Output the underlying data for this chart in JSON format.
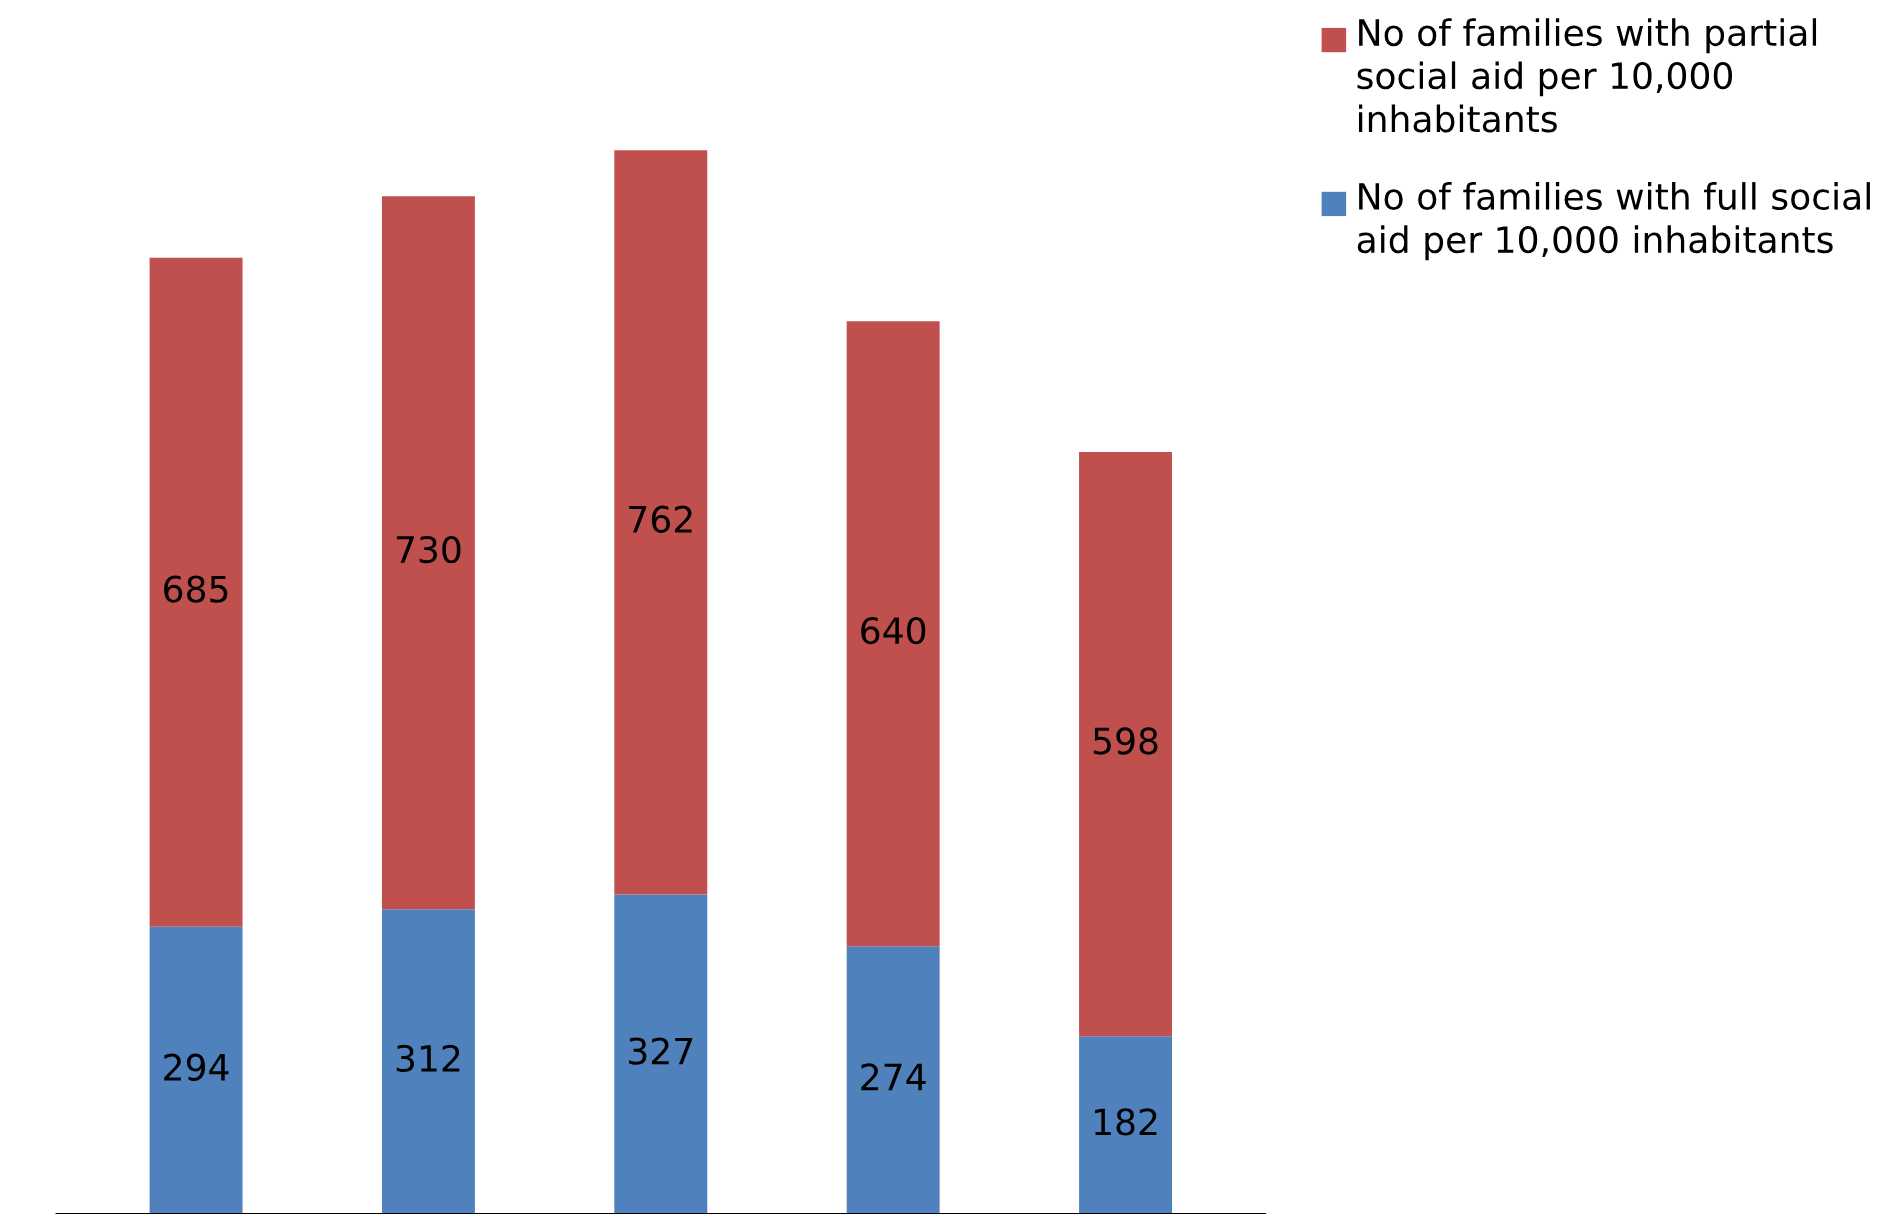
{
  "chart_data": {
    "type": "bar",
    "stacked": true,
    "categories": [
      null,
      null,
      null,
      null,
      null
    ],
    "series": [
      {
        "name": "No of families with full social aid per 10,000 inhabitants",
        "color": "#4f81bd",
        "values": [
          294,
          312,
          327,
          274,
          182
        ]
      },
      {
        "name": "No of families with partial social aid per 10,000 inhabitants",
        "color": "#c0504d",
        "values": [
          685,
          730,
          762,
          640,
          598
        ]
      }
    ],
    "data_labels": true,
    "legend": "top right",
    "grid": false
  }
}
